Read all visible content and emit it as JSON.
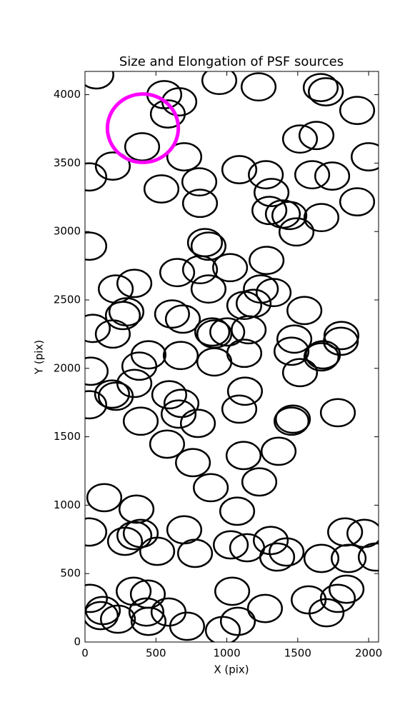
{
  "chart_data": {
    "type": "scatter",
    "title": "Size and Elongation of PSF sources",
    "x_label": "X (pix)",
    "y_label": "Y (pix)",
    "x": [
      80,
      559,
      665,
      584,
      947,
      1224,
      1662,
      1698,
      1919,
      1516,
      1632,
      2000,
      403,
      196,
      30,
      700,
      539,
      806,
      811,
      1088,
      1275,
      1315,
      1300,
      1395,
      1441,
      1491,
      1602,
      1743,
      1919,
      1667,
      30,
      846,
      871,
      1280,
      650,
      811,
      871,
      1023,
      348,
      217,
      292,
      267,
      196,
      55,
      614,
      690,
      1123,
      1189,
      1240,
      1330,
      1547,
      1154,
      897,
      912,
      1003,
      1123,
      912,
      675,
      448,
      383,
      348,
      40,
      30,
      191,
      217,
      594,
      680,
      660,
      796,
      393,
      579,
      761,
      887,
      1128,
      1088,
      1456,
      1466,
      1783,
      1516,
      1456,
      1476,
      1667,
      1678,
      1808,
      1804,
      1118,
      1229,
      1365,
      1073,
      136,
      363,
      30,
      282,
      348,
      393,
      509,
      700,
      776,
      1028,
      1143,
      1310,
      1355,
      1421,
      1667,
      1834,
      1859,
      1970,
      2050,
      35,
      126,
      111,
      232,
      343,
      443,
      433,
      448,
      589,
      720,
      972,
      1078,
      1038,
      1269,
      1577,
      1703,
      1783,
      1844
    ],
    "values": [
      4145,
      4000,
      3948,
      3859,
      4104,
      4057,
      4052,
      4021,
      3885,
      3676,
      3702,
      3546,
      3619,
      3478,
      3399,
      3546,
      3311,
      3363,
      3206,
      3452,
      3415,
      3285,
      3154,
      3128,
      3117,
      2997,
      3415,
      3405,
      3217,
      3102,
      2893,
      2919,
      2893,
      2789,
      2700,
      2721,
      2580,
      2736,
      2621,
      2580,
      2413,
      2386,
      2251,
      2292,
      2397,
      2360,
      2460,
      2475,
      2580,
      2554,
      2423,
      2282,
      2266,
      2251,
      2266,
      2110,
      2047,
      2094,
      2099,
      2016,
      1890,
      1979,
      1734,
      1812,
      1796,
      1807,
      1744,
      1666,
      1598,
      1614,
      1446,
      1311,
      1128,
      1833,
      1702,
      1614,
      1629,
      1676,
      1969,
      2125,
      2214,
      2084,
      2099,
      2240,
      2198,
      1363,
      1170,
      1394,
      956,
      1055,
      971,
      804,
      736,
      778,
      794,
      663,
      820,
      648,
      710,
      689,
      742,
      621,
      658,
      611,
      804,
      611,
      794,
      621,
      319,
      230,
      193,
      167,
      371,
      350,
      219,
      151,
      219,
      115,
      84,
      151,
      371,
      245,
      308,
      214,
      319,
      386
    ],
    "marker_width": 240,
    "marker_height": 200,
    "color": "#000000",
    "highlight": {
      "x": 408,
      "y": 3755,
      "radius": 250,
      "color": "#ff00ff"
    },
    "xlim": [
      0,
      2070
    ],
    "ylim": [
      0,
      4170
    ],
    "xticks": [
      0,
      500,
      1000,
      1500,
      2000
    ],
    "yticks": [
      0,
      500,
      1000,
      1500,
      2000,
      2500,
      3000,
      3500,
      4000
    ]
  }
}
